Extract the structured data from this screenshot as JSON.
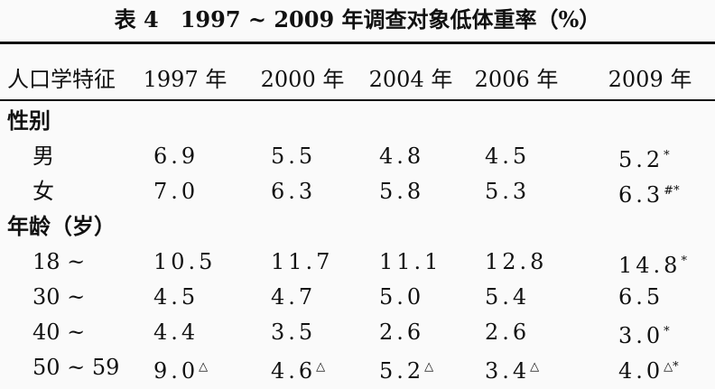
{
  "title": "表 4　1997 ~ 2009 年调查对象低体重率（%）",
  "table": {
    "header": [
      "人口学特征",
      "1997 年",
      "2000 年",
      "2004 年",
      "2006 年",
      "2009 年"
    ],
    "sections": [
      {
        "label": "性别",
        "rows": [
          {
            "label": "男",
            "cells": [
              "6.9",
              "5.5",
              "4.8",
              "4.5",
              {
                "text": "5.2",
                "sup": "*"
              }
            ]
          },
          {
            "label": "女",
            "cells": [
              "7.0",
              "6.3",
              "5.8",
              "5.3",
              {
                "text": "6.3",
                "sup": "#*"
              }
            ]
          }
        ]
      },
      {
        "label": "年龄（岁）",
        "rows": [
          {
            "label": "18 ~",
            "cells": [
              "10.5",
              "11.7",
              "11.1",
              "12.8",
              {
                "text": "14.8",
                "sup": "*"
              }
            ]
          },
          {
            "label": "30 ~",
            "cells": [
              "4.5",
              "4.7",
              "5.0",
              "5.4",
              "6.5"
            ]
          },
          {
            "label": "40 ~",
            "cells": [
              "4.4",
              "3.5",
              "2.6",
              "2.6",
              {
                "text": "3.0",
                "sup": "*"
              }
            ]
          },
          {
            "label": "50 ~ 59",
            "cells": [
              {
                "text": "9.0",
                "sup": "△"
              },
              {
                "text": "4.6",
                "sup": "△"
              },
              {
                "text": "5.2",
                "sup": "△"
              },
              {
                "text": "3.4",
                "sup": "△"
              },
              {
                "text": "4.0",
                "sup": "△*"
              }
            ]
          }
        ]
      }
    ]
  }
}
